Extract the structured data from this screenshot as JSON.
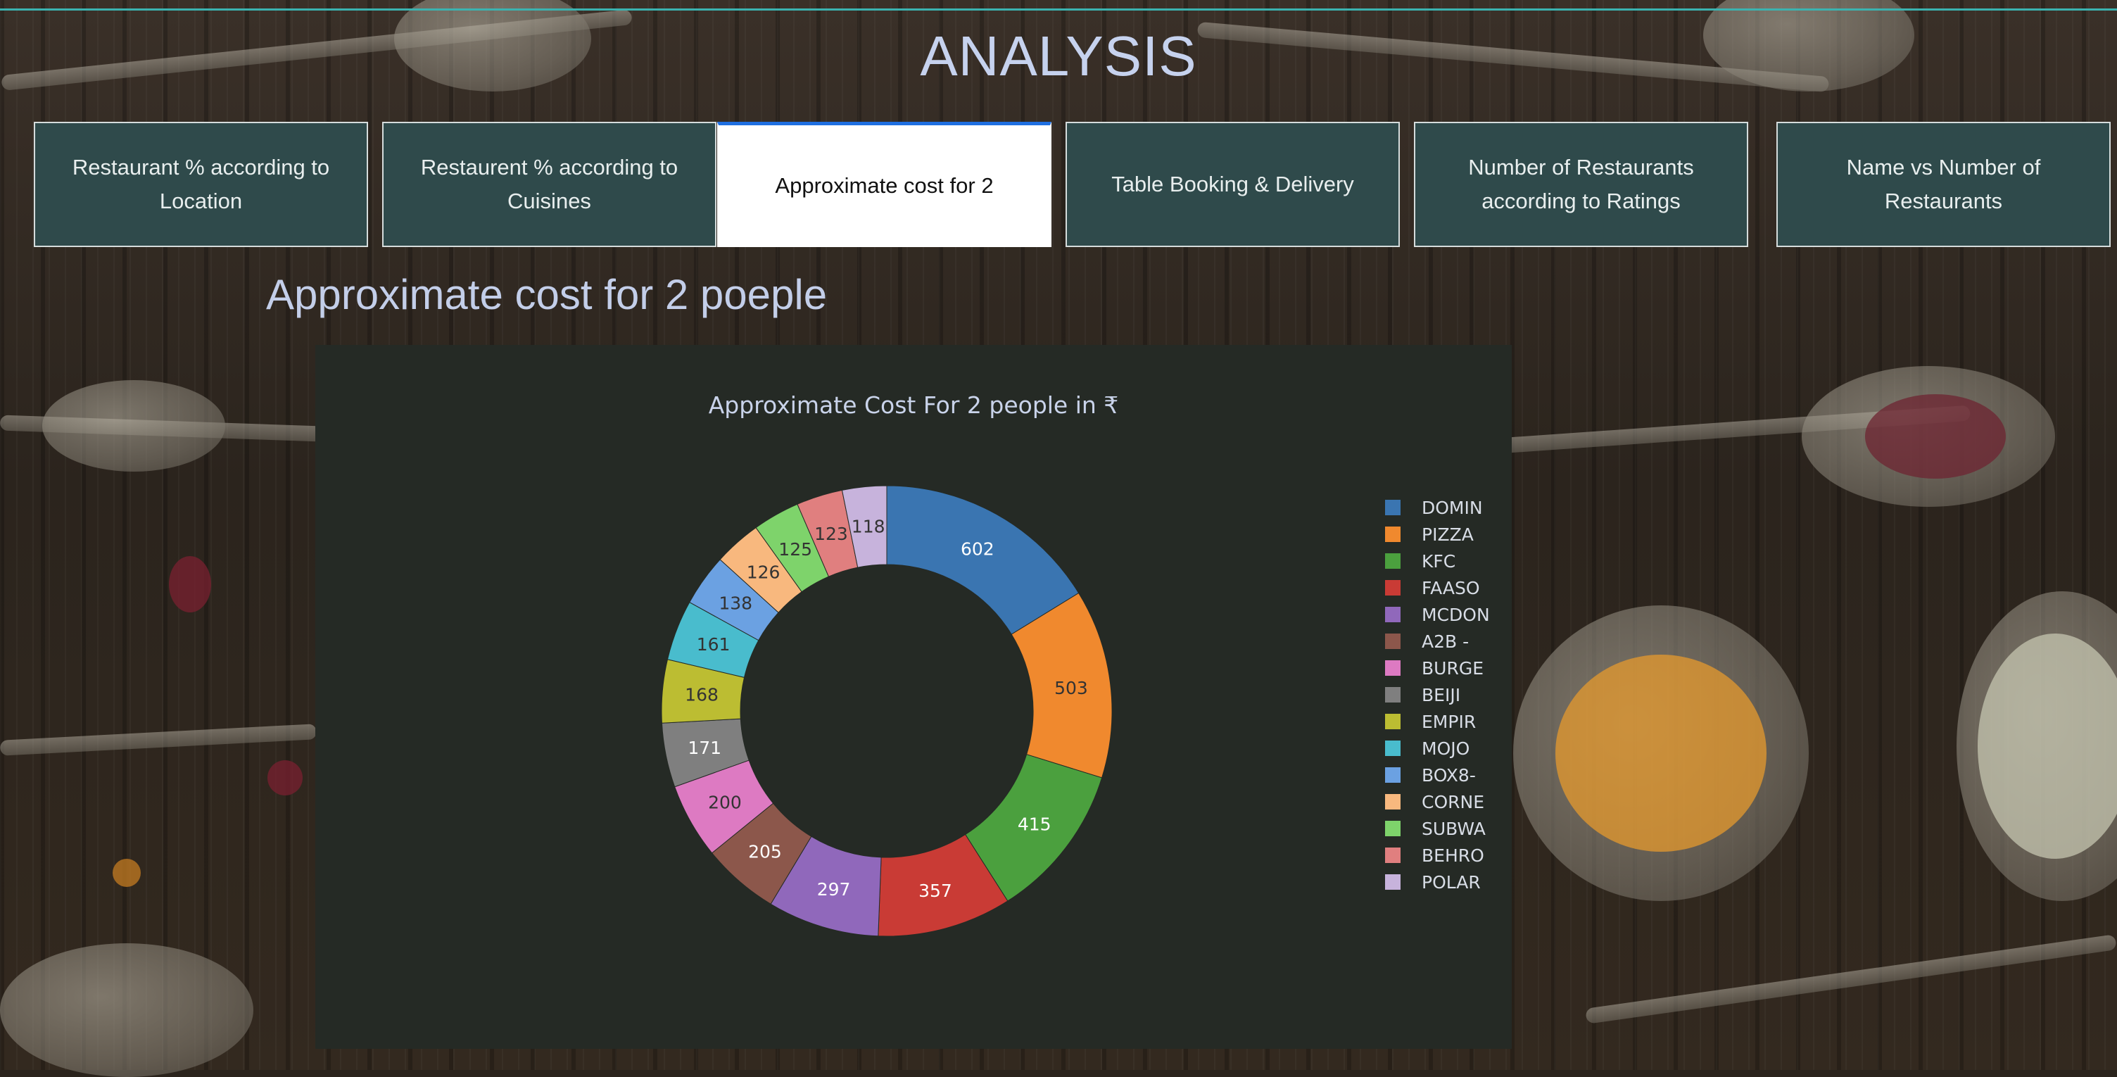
{
  "header": {
    "title": "ANALYSIS"
  },
  "tabs": [
    {
      "label": "Restaurant % according to Location",
      "active": false
    },
    {
      "label": "Restaurent % according to Cuisines",
      "active": false
    },
    {
      "label": "Approximate cost for 2",
      "active": true
    },
    {
      "label": "Table Booking & Delivery",
      "active": false
    },
    {
      "label": "Number of Restaurants according to Ratings",
      "active": false
    },
    {
      "label": "Name vs Number of Restaurants",
      "active": false
    }
  ],
  "section": {
    "title": "Approximate cost for 2 poeple"
  },
  "colors": {
    "accent_line": "#3bb3b0",
    "tab_bg": "#2f4a4b",
    "active_tab_border": "#1f6fe0",
    "panel_bg": "#252a25"
  },
  "chart_data": {
    "type": "pie",
    "hole": 0.65,
    "title": "Approximate Cost For 2 people in ₹",
    "labels": [
      "DOMIN",
      "PIZZA",
      "KFC",
      "FAASO",
      "MCDON",
      "A2B -",
      "BURGE",
      "BEIJI",
      "EMPIR",
      "MOJO",
      "BOX8-",
      "CORNE",
      "SUBWA",
      "BEHRO",
      "POLAR"
    ],
    "values": [
      602,
      503,
      415,
      357,
      297,
      205,
      200,
      171,
      168,
      161,
      138,
      126,
      125,
      123,
      118
    ],
    "colors": [
      "#3a75b1",
      "#f0892e",
      "#4ba03e",
      "#c93b35",
      "#9068bb",
      "#8c574b",
      "#dd7ac2",
      "#7f7f7f",
      "#bcbd32",
      "#49bccd",
      "#6ba1e2",
      "#f8b87e",
      "#7ed36b",
      "#e07f7f",
      "#c7b3dc"
    ],
    "label_text_colors": [
      "#ffffff",
      "#333333",
      "#ffffff",
      "#ffffff",
      "#ffffff",
      "#ffffff",
      "#333333",
      "#ffffff",
      "#333333",
      "#333333",
      "#333333",
      "#333333",
      "#333333",
      "#333333",
      "#333333"
    ],
    "legend_position": "right"
  }
}
